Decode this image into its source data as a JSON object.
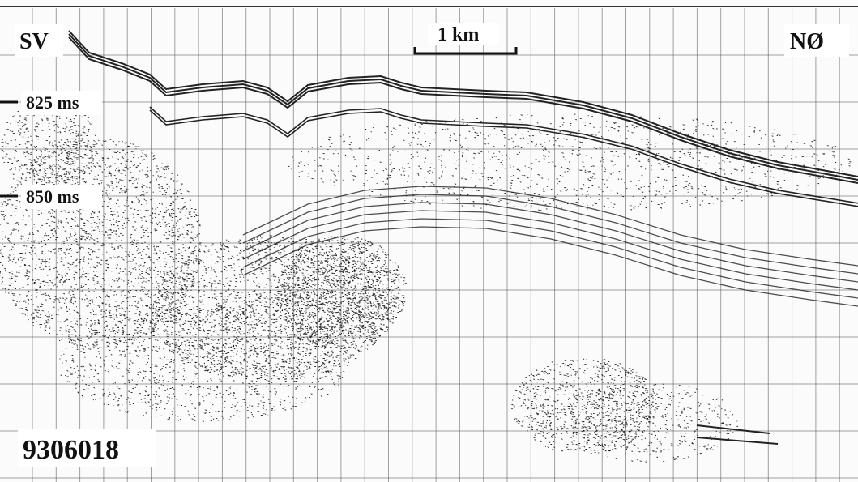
{
  "labels": {
    "left_direction": "SV",
    "right_direction": "NØ",
    "scale_bar": "1 km",
    "time_upper": "825 ms",
    "time_lower": "850 ms",
    "profile_id": "9306018"
  }
}
